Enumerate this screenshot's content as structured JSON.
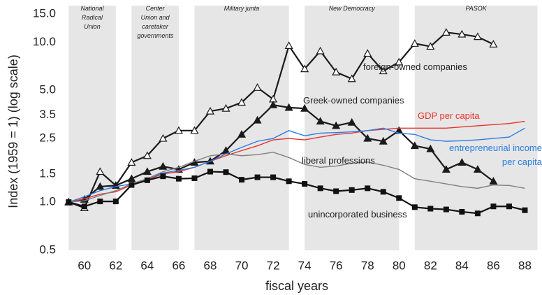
{
  "chart_data": {
    "type": "line",
    "y_label": "Index (1959 = 1) (log scale)",
    "x_label": "fiscal years",
    "log_y": true,
    "xlim": [
      58.5,
      89
    ],
    "xticks": [
      60,
      62,
      64,
      66,
      68,
      70,
      72,
      74,
      76,
      78,
      80,
      82,
      84,
      86,
      88
    ],
    "ylim": [
      0.5,
      15
    ],
    "yticks": [
      0.5,
      {
        "value": 1,
        "label": "1.0"
      },
      1.5,
      2.5,
      3.5,
      {
        "value": 5,
        "label": "5.0"
      },
      {
        "value": 10,
        "label": "10.0"
      },
      {
        "value": 15,
        "label": "15.0"
      }
    ],
    "periods": [
      {
        "label": "National Radical Union",
        "start": 59,
        "end": 62
      },
      {
        "label": "Center Union and caretaker governments",
        "start": 63,
        "end": 66
      },
      {
        "label": "Military junta",
        "start": 67,
        "end": 73
      },
      {
        "label": "New Democracy",
        "start": 74,
        "end": 80
      },
      {
        "label": "PASOK",
        "start": 81,
        "end": 88.8
      }
    ],
    "x": [
      59,
      60,
      61,
      62,
      63,
      64,
      65,
      66,
      67,
      68,
      69,
      70,
      71,
      72,
      73,
      74,
      75,
      76,
      77,
      78,
      79,
      80,
      81,
      82,
      83,
      84,
      85,
      86,
      87,
      88
    ],
    "series": [
      {
        "name": "foreign-owned companies",
        "color": "#1a1a1a",
        "marker": "open-triangle",
        "values": [
          1.0,
          0.92,
          1.55,
          1.27,
          1.77,
          1.95,
          2.5,
          2.8,
          2.8,
          3.7,
          3.85,
          4.2,
          5.2,
          4.4,
          9.5,
          6.8,
          8.8,
          6.5,
          5.9,
          8.5,
          6.6,
          7.5,
          9.8,
          9.4,
          11.5,
          11.2,
          10.8,
          9.7,
          null,
          null
        ]
      },
      {
        "name": "Greek-owned companies",
        "color": "#1a1a1a",
        "marker": "triangle",
        "values": [
          1.0,
          1.04,
          1.25,
          1.27,
          1.4,
          1.55,
          1.67,
          1.6,
          1.77,
          1.8,
          2.1,
          2.65,
          3.25,
          4.05,
          3.9,
          3.85,
          3.2,
          3.0,
          3.15,
          2.5,
          2.4,
          2.8,
          2.25,
          2.15,
          1.6,
          1.77,
          1.6,
          1.35,
          null,
          null
        ]
      },
      {
        "name": "GDP per capita",
        "color": "#e8332a",
        "marker": "none",
        "values": [
          1.0,
          1.05,
          1.12,
          1.16,
          1.28,
          1.38,
          1.5,
          1.55,
          1.65,
          1.8,
          1.95,
          2.1,
          2.25,
          2.45,
          2.5,
          2.45,
          2.55,
          2.65,
          2.7,
          2.8,
          2.85,
          2.9,
          2.9,
          2.9,
          2.9,
          2.95,
          3.0,
          3.05,
          3.1,
          3.2
        ]
      },
      {
        "name": "entrepreneurial income per capita",
        "color": "#2a7be4",
        "marker": "none",
        "values": [
          1.0,
          1.08,
          1.18,
          1.25,
          1.3,
          1.4,
          1.52,
          1.58,
          1.65,
          1.8,
          2.0,
          2.2,
          2.4,
          2.5,
          2.8,
          2.6,
          2.7,
          2.72,
          2.75,
          2.8,
          2.9,
          2.7,
          2.65,
          2.45,
          2.4,
          2.42,
          2.45,
          2.5,
          2.55,
          2.9
        ]
      },
      {
        "name": "liberal professions",
        "color": "#808080",
        "marker": "none",
        "values": [
          1.0,
          1.02,
          1.1,
          1.18,
          1.3,
          1.4,
          1.55,
          1.65,
          1.8,
          1.95,
          2.0,
          1.95,
          1.98,
          2.05,
          1.9,
          1.72,
          1.65,
          1.68,
          1.75,
          1.78,
          1.7,
          1.6,
          1.4,
          1.35,
          1.3,
          1.25,
          1.22,
          1.28,
          1.27,
          1.22
        ]
      },
      {
        "name": "unincorporated business",
        "color": "#111111",
        "marker": "square",
        "values": [
          1.0,
          0.94,
          1.01,
          1.01,
          1.28,
          1.37,
          1.45,
          1.4,
          1.41,
          1.55,
          1.54,
          1.38,
          1.43,
          1.43,
          1.35,
          1.3,
          1.22,
          1.17,
          1.19,
          1.22,
          1.16,
          1.06,
          0.93,
          0.91,
          0.9,
          0.87,
          0.85,
          0.94,
          0.94,
          0.89
        ]
      }
    ]
  }
}
